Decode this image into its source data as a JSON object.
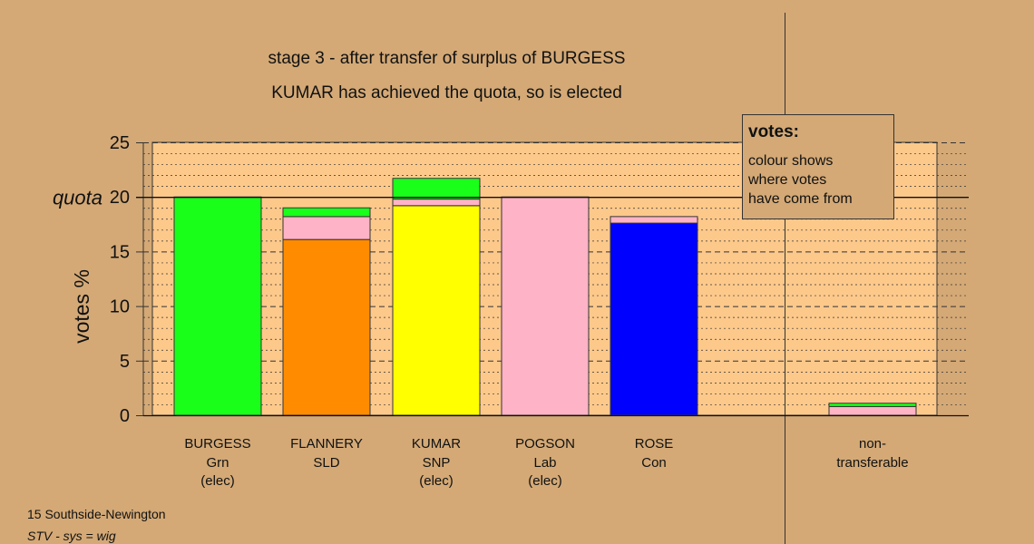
{
  "header": {
    "title": "stage 3 - after transfer of surplus of BURGESS",
    "subtitle": "KUMAR has achieved the quota, so is elected"
  },
  "footer": {
    "constituency": "15 Southside-Newington",
    "system": "STV - sys = wig"
  },
  "legend": {
    "title": "votes:",
    "lines": [
      "colour shows",
      "where votes",
      "have come from"
    ]
  },
  "colors": {
    "background": "#d4a976",
    "plot_background": "#fdc98b",
    "Grn": "#1aff1a",
    "SLD": "#ff8c00",
    "SNP": "#ffff00",
    "Lab": "#ffb3c6",
    "Con": "#0000ff"
  },
  "chart_data": {
    "type": "bar",
    "stacked": true,
    "ylabel": "votes %",
    "ylim": [
      0,
      25
    ],
    "yticks": [
      0,
      5,
      10,
      15,
      20,
      25
    ],
    "quota": 20,
    "quota_label": "quota",
    "grid": true,
    "candidates": [
      {
        "name": "BURGESS",
        "party": "Grn",
        "status": "(elec)",
        "segments": [
          {
            "source": "Grn",
            "value": 20.0
          }
        ]
      },
      {
        "name": "FLANNERY",
        "party": "SLD",
        "status": "",
        "segments": [
          {
            "source": "SLD",
            "value": 16.1
          },
          {
            "source": "Lab",
            "value": 2.1
          },
          {
            "source": "Grn",
            "value": 0.8
          }
        ]
      },
      {
        "name": "KUMAR",
        "party": "SNP",
        "status": "(elec)",
        "segments": [
          {
            "source": "SNP",
            "value": 19.2
          },
          {
            "source": "Lab",
            "value": 0.6
          },
          {
            "source": "Grn",
            "value": 1.9
          }
        ]
      },
      {
        "name": "POGSON",
        "party": "Lab",
        "status": "(elec)",
        "segments": [
          {
            "source": "Lab",
            "value": 20.0
          }
        ]
      },
      {
        "name": "ROSE",
        "party": "Con",
        "status": "",
        "segments": [
          {
            "source": "Con",
            "value": 17.6
          },
          {
            "source": "Lab",
            "value": 0.6
          }
        ]
      }
    ],
    "non_transferable": {
      "label_lines": [
        "non-",
        "transferable"
      ],
      "segments": [
        {
          "source": "Lab",
          "value": 0.8
        },
        {
          "source": "Grn",
          "value": 0.3
        }
      ]
    }
  }
}
